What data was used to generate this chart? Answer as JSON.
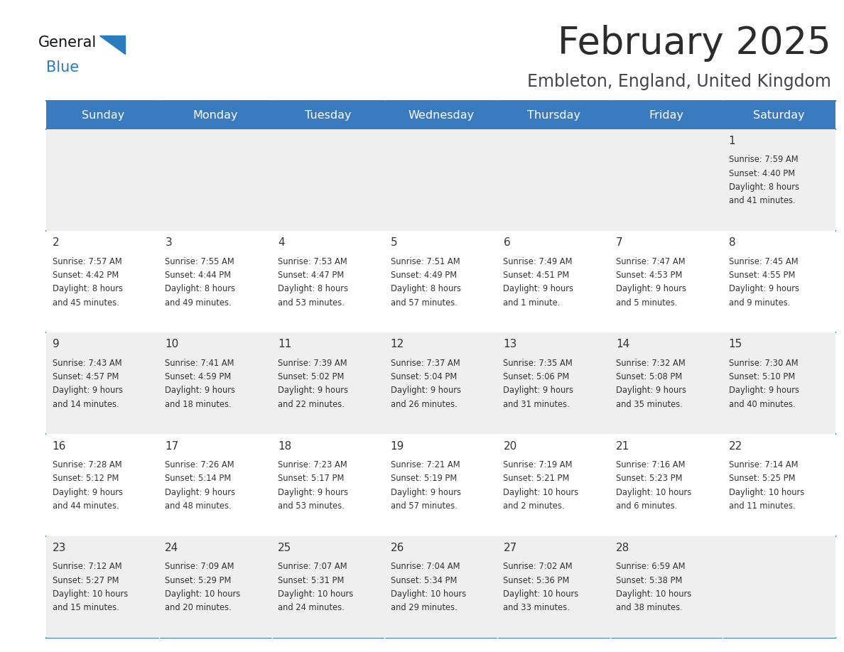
{
  "title": "February 2025",
  "subtitle": "Embleton, England, United Kingdom",
  "days_of_week": [
    "Sunday",
    "Monday",
    "Tuesday",
    "Wednesday",
    "Thursday",
    "Friday",
    "Saturday"
  ],
  "header_bg": "#3a7abf",
  "header_text": "#ffffff",
  "cell_bg_light": "#efefef",
  "cell_bg_white": "#ffffff",
  "text_color": "#333333",
  "day_num_color": "#333333",
  "border_color": "#3a7abf",
  "logo_general_color": "#111111",
  "logo_blue_color": "#2b7bbf",
  "calendar_data": [
    [
      null,
      null,
      null,
      null,
      null,
      null,
      {
        "day": 1,
        "sunrise": "7:59 AM",
        "sunset": "4:40 PM",
        "daylight": "8 hours and 41 minutes."
      }
    ],
    [
      {
        "day": 2,
        "sunrise": "7:57 AM",
        "sunset": "4:42 PM",
        "daylight": "8 hours and 45 minutes."
      },
      {
        "day": 3,
        "sunrise": "7:55 AM",
        "sunset": "4:44 PM",
        "daylight": "8 hours and 49 minutes."
      },
      {
        "day": 4,
        "sunrise": "7:53 AM",
        "sunset": "4:47 PM",
        "daylight": "8 hours and 53 minutes."
      },
      {
        "day": 5,
        "sunrise": "7:51 AM",
        "sunset": "4:49 PM",
        "daylight": "8 hours and 57 minutes."
      },
      {
        "day": 6,
        "sunrise": "7:49 AM",
        "sunset": "4:51 PM",
        "daylight": "9 hours and 1 minute."
      },
      {
        "day": 7,
        "sunrise": "7:47 AM",
        "sunset": "4:53 PM",
        "daylight": "9 hours and 5 minutes."
      },
      {
        "day": 8,
        "sunrise": "7:45 AM",
        "sunset": "4:55 PM",
        "daylight": "9 hours and 9 minutes."
      }
    ],
    [
      {
        "day": 9,
        "sunrise": "7:43 AM",
        "sunset": "4:57 PM",
        "daylight": "9 hours and 14 minutes."
      },
      {
        "day": 10,
        "sunrise": "7:41 AM",
        "sunset": "4:59 PM",
        "daylight": "9 hours and 18 minutes."
      },
      {
        "day": 11,
        "sunrise": "7:39 AM",
        "sunset": "5:02 PM",
        "daylight": "9 hours and 22 minutes."
      },
      {
        "day": 12,
        "sunrise": "7:37 AM",
        "sunset": "5:04 PM",
        "daylight": "9 hours and 26 minutes."
      },
      {
        "day": 13,
        "sunrise": "7:35 AM",
        "sunset": "5:06 PM",
        "daylight": "9 hours and 31 minutes."
      },
      {
        "day": 14,
        "sunrise": "7:32 AM",
        "sunset": "5:08 PM",
        "daylight": "9 hours and 35 minutes."
      },
      {
        "day": 15,
        "sunrise": "7:30 AM",
        "sunset": "5:10 PM",
        "daylight": "9 hours and 40 minutes."
      }
    ],
    [
      {
        "day": 16,
        "sunrise": "7:28 AM",
        "sunset": "5:12 PM",
        "daylight": "9 hours and 44 minutes."
      },
      {
        "day": 17,
        "sunrise": "7:26 AM",
        "sunset": "5:14 PM",
        "daylight": "9 hours and 48 minutes."
      },
      {
        "day": 18,
        "sunrise": "7:23 AM",
        "sunset": "5:17 PM",
        "daylight": "9 hours and 53 minutes."
      },
      {
        "day": 19,
        "sunrise": "7:21 AM",
        "sunset": "5:19 PM",
        "daylight": "9 hours and 57 minutes."
      },
      {
        "day": 20,
        "sunrise": "7:19 AM",
        "sunset": "5:21 PM",
        "daylight": "10 hours and 2 minutes."
      },
      {
        "day": 21,
        "sunrise": "7:16 AM",
        "sunset": "5:23 PM",
        "daylight": "10 hours and 6 minutes."
      },
      {
        "day": 22,
        "sunrise": "7:14 AM",
        "sunset": "5:25 PM",
        "daylight": "10 hours and 11 minutes."
      }
    ],
    [
      {
        "day": 23,
        "sunrise": "7:12 AM",
        "sunset": "5:27 PM",
        "daylight": "10 hours and 15 minutes."
      },
      {
        "day": 24,
        "sunrise": "7:09 AM",
        "sunset": "5:29 PM",
        "daylight": "10 hours and 20 minutes."
      },
      {
        "day": 25,
        "sunrise": "7:07 AM",
        "sunset": "5:31 PM",
        "daylight": "10 hours and 24 minutes."
      },
      {
        "day": 26,
        "sunrise": "7:04 AM",
        "sunset": "5:34 PM",
        "daylight": "10 hours and 29 minutes."
      },
      {
        "day": 27,
        "sunrise": "7:02 AM",
        "sunset": "5:36 PM",
        "daylight": "10 hours and 33 minutes."
      },
      {
        "day": 28,
        "sunrise": "6:59 AM",
        "sunset": "5:38 PM",
        "daylight": "10 hours and 38 minutes."
      },
      null
    ]
  ],
  "figsize": [
    11.88,
    9.18
  ],
  "dpi": 100
}
